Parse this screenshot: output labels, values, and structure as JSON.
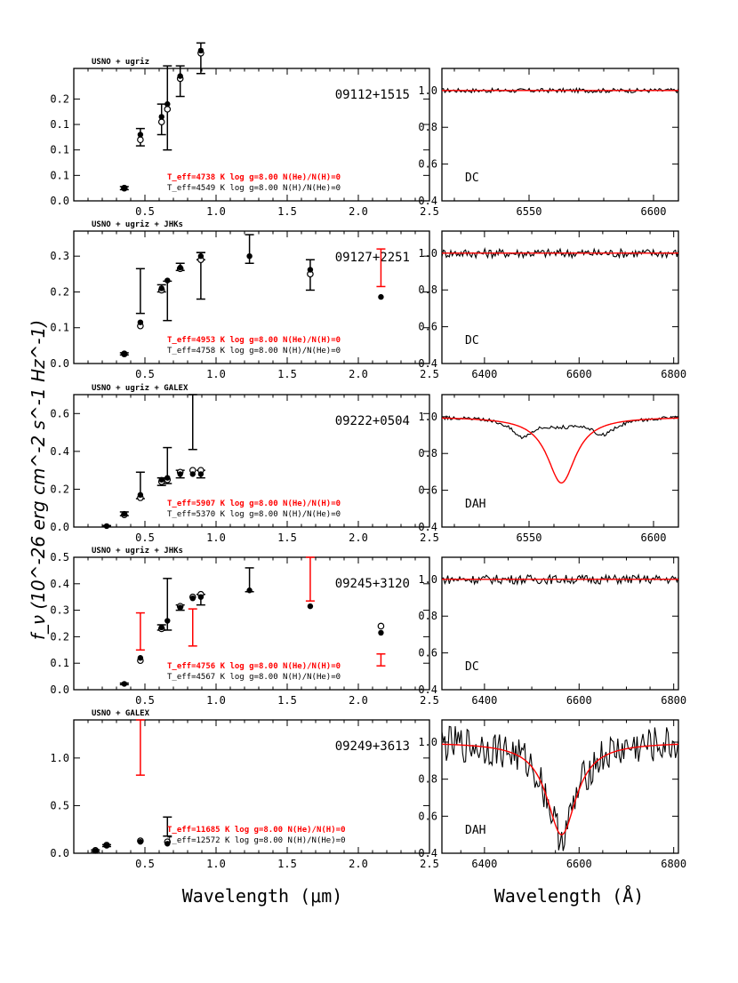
{
  "figure": {
    "ylabel": "f_ν (10^-26 erg cm^-2 s^-1 Hz^-1)",
    "xlabel_left": "Wavelength (μm)",
    "xlabel_right": "Wavelength (Å)"
  },
  "colors": {
    "model_red": "#ff0000",
    "ink": "#000000"
  },
  "chart_data": [
    {
      "type": "scatter",
      "panel": "sed-1",
      "name": "09112+1515",
      "source": "USNO + ugriz",
      "xlim": [
        0,
        2.5
      ],
      "ylim": [
        0,
        0.26
      ],
      "yticks": [
        0,
        0.05,
        0.1,
        0.15,
        0.2
      ],
      "ytick_labels": [
        "0.0",
        "0.1",
        "0.1",
        "0.1",
        "0.2"
      ],
      "xticks": [
        0.5,
        1.0,
        1.5,
        2.0,
        2.5
      ],
      "xtick_labels": [
        "0.5",
        "1.0",
        "1.5",
        "2.0",
        "2.5"
      ],
      "errorbars": [
        {
          "x": 0.355,
          "y": 0.025,
          "lo": 0.022,
          "hi": 0.028,
          "color": "black"
        },
        {
          "x": 0.468,
          "y": 0.125,
          "lo": 0.108,
          "hi": 0.142,
          "color": "black"
        },
        {
          "x": 0.617,
          "y": 0.16,
          "lo": 0.13,
          "hi": 0.19,
          "color": "black"
        },
        {
          "x": 0.658,
          "y": 0.18,
          "lo": 0.1,
          "hi": 0.265,
          "color": "black"
        },
        {
          "x": 0.748,
          "y": 0.235,
          "lo": 0.205,
          "hi": 0.265,
          "color": "black"
        },
        {
          "x": 0.893,
          "y": 0.275,
          "lo": 0.25,
          "hi": 0.31,
          "color": "black"
        }
      ],
      "filled": [
        [
          0.355,
          0.025
        ],
        [
          0.468,
          0.13
        ],
        [
          0.617,
          0.165
        ],
        [
          0.658,
          0.19
        ],
        [
          0.748,
          0.245
        ],
        [
          0.893,
          0.295
        ]
      ],
      "open": [
        [
          0.355,
          0.025
        ],
        [
          0.468,
          0.12
        ],
        [
          0.617,
          0.155
        ],
        [
          0.658,
          0.18
        ],
        [
          0.748,
          0.24
        ],
        [
          0.893,
          0.29
        ]
      ],
      "fits": [
        {
          "text": "T_eff=4738 K  log g=8.00  N(He)/N(H)=0",
          "color": "red"
        },
        {
          "text": "T_eff=4549 K  log g=8.00  N(H)/N(He)=0",
          "color": "black"
        }
      ]
    },
    {
      "type": "scatter",
      "panel": "sed-2",
      "name": "09127+2251",
      "source": "USNO + ugriz + JHKs",
      "xlim": [
        0,
        2.5
      ],
      "ylim": [
        0,
        0.37
      ],
      "yticks": [
        0,
        0.1,
        0.2,
        0.3
      ],
      "ytick_labels": [
        "0.0",
        "0.1",
        "0.2",
        "0.3"
      ],
      "xticks": [
        0.5,
        1.0,
        1.5,
        2.0,
        2.5
      ],
      "xtick_labels": [
        "0.5",
        "1.0",
        "1.5",
        "2.0",
        "2.5"
      ],
      "errorbars": [
        {
          "x": 0.355,
          "y": 0.027,
          "lo": 0.024,
          "hi": 0.03,
          "color": "black"
        },
        {
          "x": 0.468,
          "y": 0.11,
          "lo": 0.14,
          "hi": 0.265,
          "color": "black"
        },
        {
          "x": 0.617,
          "y": 0.21,
          "lo": 0.2,
          "hi": 0.22,
          "color": "black"
        },
        {
          "x": 0.658,
          "y": 0.23,
          "lo": 0.12,
          "hi": 0.23,
          "color": "black"
        },
        {
          "x": 0.748,
          "y": 0.27,
          "lo": 0.26,
          "hi": 0.28,
          "color": "black"
        },
        {
          "x": 0.893,
          "y": 0.3,
          "lo": 0.18,
          "hi": 0.31,
          "color": "black"
        },
        {
          "x": 0.893,
          "y": 0.3,
          "lo": 0.29,
          "hi": 0.31,
          "color": "black"
        },
        {
          "x": 1.235,
          "y": 0.3,
          "lo": 0.28,
          "hi": 0.36,
          "color": "black"
        },
        {
          "x": 1.662,
          "y": 0.26,
          "lo": 0.205,
          "hi": 0.29,
          "color": "black"
        },
        {
          "x": 2.159,
          "y": 0.27,
          "lo": 0.215,
          "hi": 0.32,
          "color": "red"
        }
      ],
      "filled": [
        [
          0.355,
          0.027
        ],
        [
          0.468,
          0.115
        ],
        [
          0.617,
          0.21
        ],
        [
          0.658,
          0.232
        ],
        [
          0.748,
          0.268
        ],
        [
          0.893,
          0.3
        ],
        [
          1.235,
          0.3
        ],
        [
          1.662,
          0.262
        ],
        [
          2.159,
          0.186
        ]
      ],
      "open": [
        [
          0.355,
          0.027
        ],
        [
          0.468,
          0.105
        ],
        [
          0.617,
          0.205
        ],
        [
          0.748,
          0.265
        ],
        [
          0.893,
          0.29
        ],
        [
          1.662,
          0.25
        ]
      ],
      "fits": [
        {
          "text": "T_eff=4953 K  log g=8.00  N(He)/N(H)=0",
          "color": "red"
        },
        {
          "text": "T_eff=4758 K  log g=8.00  N(H)/N(He)=0",
          "color": "black"
        }
      ]
    },
    {
      "type": "scatter",
      "panel": "sed-3",
      "name": "09222+0504",
      "source": "USNO + ugriz + GALEX",
      "xlim": [
        0,
        2.5
      ],
      "ylim": [
        0,
        0.7
      ],
      "yticks": [
        0,
        0.2,
        0.4,
        0.6
      ],
      "ytick_labels": [
        "0.0",
        "0.2",
        "0.4",
        "0.6"
      ],
      "xticks": [
        0.5,
        1.0,
        1.5,
        2.0,
        2.5
      ],
      "xtick_labels": [
        "0.5",
        "1.0",
        "1.5",
        "2.0",
        "2.5"
      ],
      "errorbars": [
        {
          "x": 0.231,
          "y": 0.005,
          "lo": 0.003,
          "hi": 0.008,
          "color": "black"
        },
        {
          "x": 0.355,
          "y": 0.07,
          "lo": 0.06,
          "hi": 0.08,
          "color": "black"
        },
        {
          "x": 0.468,
          "y": 0.16,
          "lo": 0.15,
          "hi": 0.29,
          "color": "black"
        },
        {
          "x": 0.617,
          "y": 0.24,
          "lo": 0.22,
          "hi": 0.26,
          "color": "black"
        },
        {
          "x": 0.658,
          "y": 0.25,
          "lo": 0.23,
          "hi": 0.42,
          "color": "black"
        },
        {
          "x": 0.748,
          "y": 0.28,
          "lo": 0.26,
          "hi": 0.3,
          "color": "black"
        },
        {
          "x": 0.836,
          "y": 0.28,
          "lo": 0.41,
          "hi": 0.7,
          "color": "black"
        },
        {
          "x": 0.893,
          "y": 0.28,
          "lo": 0.26,
          "hi": 0.3,
          "color": "black"
        }
      ],
      "filled": [
        [
          0.231,
          0.005
        ],
        [
          0.355,
          0.07
        ],
        [
          0.468,
          0.17
        ],
        [
          0.617,
          0.25
        ],
        [
          0.658,
          0.26
        ],
        [
          0.748,
          0.28
        ],
        [
          0.836,
          0.28
        ],
        [
          0.893,
          0.28
        ]
      ],
      "open": [
        [
          0.355,
          0.065
        ],
        [
          0.468,
          0.155
        ],
        [
          0.617,
          0.24
        ],
        [
          0.658,
          0.25
        ],
        [
          0.748,
          0.29
        ],
        [
          0.836,
          0.3
        ],
        [
          0.893,
          0.3
        ]
      ],
      "fits": [
        {
          "text": "T_eff=5907 K  log g=8.00  N(He)/N(H)=0",
          "color": "red"
        },
        {
          "text": "T_eff=5370 K  log g=8.00  N(H)/N(He)=0",
          "color": "black"
        }
      ]
    },
    {
      "type": "scatter",
      "panel": "sed-4",
      "name": "09245+3120",
      "source": "USNO + ugriz + JHKs",
      "xlim": [
        0,
        2.5
      ],
      "ylim": [
        0,
        0.5
      ],
      "yticks": [
        0,
        0.1,
        0.2,
        0.3,
        0.4,
        0.5
      ],
      "ytick_labels": [
        "0.0",
        "0.1",
        "0.2",
        "0.3",
        "0.4",
        "0.5"
      ],
      "xticks": [
        0.5,
        1.0,
        1.5,
        2.0,
        2.5
      ],
      "xtick_labels": [
        "0.5",
        "1.0",
        "1.5",
        "2.0",
        "2.5"
      ],
      "errorbars": [
        {
          "x": 0.355,
          "y": 0.022,
          "lo": 0.019,
          "hi": 0.025,
          "color": "black"
        },
        {
          "x": 0.468,
          "y": 0.22,
          "lo": 0.15,
          "hi": 0.29,
          "color": "red"
        },
        {
          "x": 0.617,
          "y": 0.235,
          "lo": 0.225,
          "hi": 0.245,
          "color": "black"
        },
        {
          "x": 0.658,
          "y": 0.26,
          "lo": 0.225,
          "hi": 0.42,
          "color": "black"
        },
        {
          "x": 0.748,
          "y": 0.31,
          "lo": 0.3,
          "hi": 0.32,
          "color": "black"
        },
        {
          "x": 0.836,
          "y": 0.235,
          "lo": 0.165,
          "hi": 0.305,
          "color": "red"
        },
        {
          "x": 0.893,
          "y": 0.35,
          "lo": 0.32,
          "hi": 0.36,
          "color": "black"
        },
        {
          "x": 1.235,
          "y": 0.38,
          "lo": 0.37,
          "hi": 0.46,
          "color": "black"
        },
        {
          "x": 1.662,
          "y": 0.42,
          "lo": 0.335,
          "hi": 0.5,
          "color": "red"
        },
        {
          "x": 2.159,
          "y": 0.115,
          "lo": 0.09,
          "hi": 0.135,
          "color": "red"
        }
      ],
      "filled": [
        [
          0.355,
          0.022
        ],
        [
          0.468,
          0.12
        ],
        [
          0.617,
          0.235
        ],
        [
          0.658,
          0.26
        ],
        [
          0.748,
          0.31
        ],
        [
          0.836,
          0.345
        ],
        [
          0.893,
          0.35
        ],
        [
          1.235,
          0.375
        ],
        [
          1.662,
          0.315
        ],
        [
          2.159,
          0.215
        ]
      ],
      "open": [
        [
          0.468,
          0.11
        ],
        [
          0.617,
          0.23
        ],
        [
          0.748,
          0.315
        ],
        [
          0.836,
          0.35
        ],
        [
          0.893,
          0.36
        ],
        [
          2.159,
          0.24
        ]
      ],
      "fits": [
        {
          "text": "T_eff=4756 K  log g=8.00  N(He)/N(H)=0",
          "color": "red"
        },
        {
          "text": "T_eff=4567 K  log g=8.00  N(H)/N(He)=0",
          "color": "black"
        }
      ]
    },
    {
      "type": "scatter",
      "panel": "sed-5",
      "name": "09249+3613",
      "source": "USNO + GALEX",
      "xlim": [
        0,
        2.5
      ],
      "ylim": [
        0,
        1.4
      ],
      "yticks": [
        0,
        0.5,
        1.0
      ],
      "ytick_labels": [
        "0.0",
        "0.5",
        "1.0"
      ],
      "xticks": [
        0.5,
        1.0,
        1.5,
        2.0,
        2.5
      ],
      "xtick_labels": [
        "0.5",
        "1.0",
        "1.5",
        "2.0",
        "2.5"
      ],
      "errorbars": [
        {
          "x": 0.152,
          "y": 0.025,
          "lo": 0.015,
          "hi": 0.035,
          "color": "black"
        },
        {
          "x": 0.231,
          "y": 0.08,
          "lo": 0.07,
          "hi": 0.09,
          "color": "black"
        },
        {
          "x": 0.468,
          "y": 1.05,
          "lo": 0.82,
          "hi": 1.4,
          "color": "red"
        },
        {
          "x": 0.658,
          "y": 0.28,
          "lo": 0.18,
          "hi": 0.38,
          "color": "black"
        }
      ],
      "filled": [
        [
          0.152,
          0.025
        ],
        [
          0.231,
          0.08
        ],
        [
          0.468,
          0.12
        ],
        [
          0.658,
          0.1
        ]
      ],
      "open": [
        [
          0.152,
          0.03
        ],
        [
          0.231,
          0.085
        ],
        [
          0.468,
          0.13
        ],
        [
          0.658,
          0.12
        ]
      ],
      "fits": [
        {
          "text": "T_eff=11685 K  log g=8.00  N(He)/N(H)=0",
          "color": "red"
        },
        {
          "text": "T_eff=12572 K  log g=8.00  N(H)/N(He)=0",
          "color": "black"
        }
      ]
    },
    {
      "type": "line",
      "panel": "spec-1",
      "spectral_type": "DC",
      "xlim": [
        6515,
        6610
      ],
      "ylim": [
        0.4,
        1.12
      ],
      "xticks": [
        6550,
        6600
      ],
      "xtick_labels": [
        "6550",
        "6600"
      ],
      "yticks": [
        0.4,
        0.6,
        0.8,
        1.0
      ],
      "ytick_labels": [
        "0.4",
        "0.6",
        "0.8",
        "1.0"
      ],
      "model": "flat",
      "noise": 0.012,
      "line_depth": 0.0,
      "line_center": 6563,
      "line_width": 10
    },
    {
      "type": "line",
      "panel": "spec-2",
      "spectral_type": "DC",
      "xlim": [
        6310,
        6810
      ],
      "ylim": [
        0.4,
        1.12
      ],
      "xticks": [
        6400,
        6600,
        6800
      ],
      "xtick_labels": [
        "6400",
        "6600",
        "6800"
      ],
      "yticks": [
        0.4,
        0.6,
        0.8,
        1.0
      ],
      "ytick_labels": [
        "0.4",
        "0.6",
        "0.8",
        "1.0"
      ],
      "model": "flat",
      "noise": 0.025,
      "line_depth": 0.0,
      "line_center": 6563,
      "line_width": 10
    },
    {
      "type": "line",
      "panel": "spec-3",
      "spectral_type": "DAH",
      "xlim": [
        6515,
        6610
      ],
      "ylim": [
        0.4,
        1.12
      ],
      "xticks": [
        6550,
        6600
      ],
      "xtick_labels": [
        "6550",
        "6600"
      ],
      "yticks": [
        0.4,
        0.6,
        0.8,
        1.0
      ],
      "ytick_labels": [
        "0.4",
        "0.6",
        "0.8",
        "1.0"
      ],
      "model": "lorentz",
      "noise": 0.01,
      "line_depth": 0.36,
      "line_center": 6563,
      "line_width": 7
    },
    {
      "type": "line",
      "panel": "spec-4",
      "spectral_type": "DC",
      "xlim": [
        6310,
        6810
      ],
      "ylim": [
        0.4,
        1.12
      ],
      "xticks": [
        6400,
        6600,
        6800
      ],
      "xtick_labels": [
        "6400",
        "6600",
        "6800"
      ],
      "yticks": [
        0.4,
        0.6,
        0.8,
        1.0
      ],
      "ytick_labels": [
        "0.4",
        "0.6",
        "0.8",
        "1.0"
      ],
      "model": "flat",
      "noise": 0.025,
      "line_depth": 0.0,
      "line_center": 6563,
      "line_width": 10
    },
    {
      "type": "line",
      "panel": "spec-5",
      "spectral_type": "DAH",
      "xlim": [
        6310,
        6810
      ],
      "ylim": [
        0.4,
        1.12
      ],
      "xticks": [
        6400,
        6600,
        6800
      ],
      "xtick_labels": [
        "6400",
        "6600",
        "6800"
      ],
      "yticks": [
        0.4,
        0.6,
        0.8,
        1.0
      ],
      "ytick_labels": [
        "0.4",
        "0.6",
        "0.8",
        "1.0"
      ],
      "model": "lorentz",
      "noise": 0.1,
      "line_depth": 0.5,
      "line_center": 6563,
      "line_width": 38
    }
  ]
}
